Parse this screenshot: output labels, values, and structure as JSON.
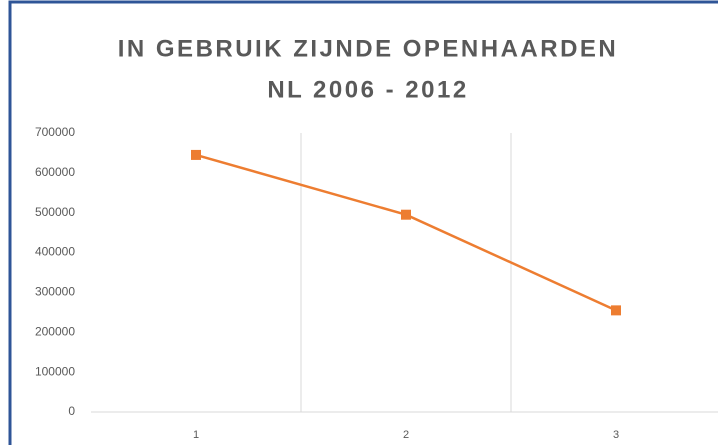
{
  "chart_data": {
    "type": "line",
    "title": [
      "IN GEBRUIK ZIJNDE OPENHAARDEN",
      "NL 2006 - 2012"
    ],
    "categories": [
      "1",
      "2",
      "3"
    ],
    "series": [
      {
        "name": null,
        "color": "#ed7d31",
        "values": [
          645000,
          495000,
          255000
        ]
      }
    ],
    "ylim": [
      0,
      700000
    ],
    "yticks": [
      0,
      100000,
      200000,
      300000,
      400000,
      500000,
      600000,
      700000
    ],
    "grid": true
  }
}
